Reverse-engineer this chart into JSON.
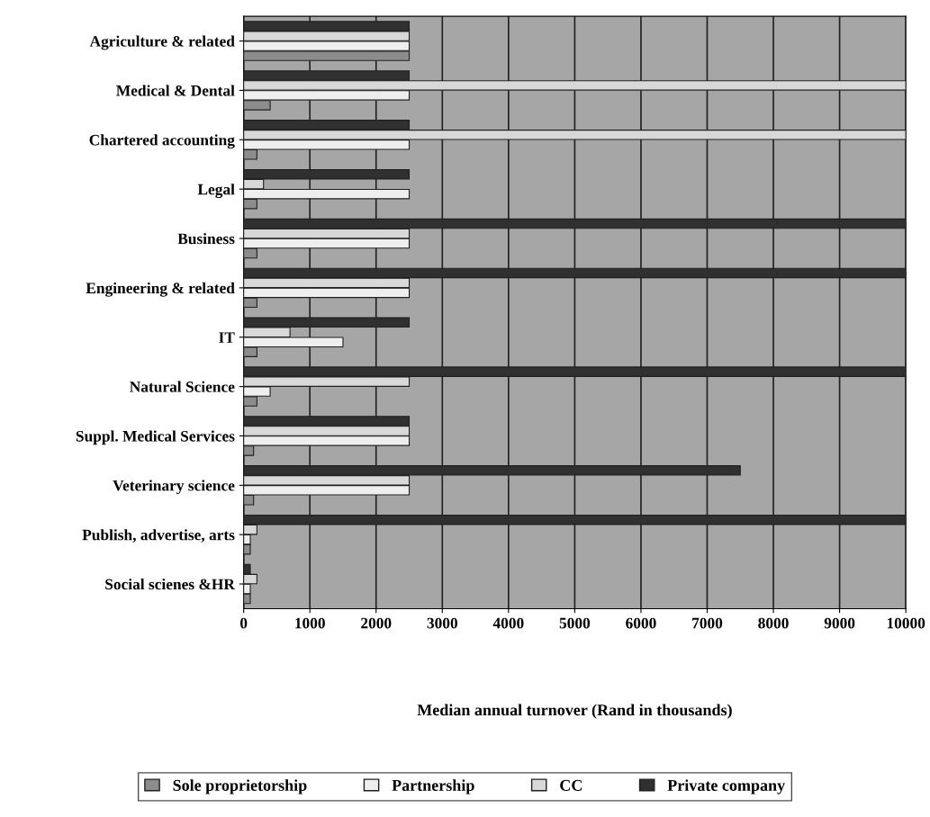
{
  "chart_data": {
    "type": "bar",
    "orientation": "horizontal",
    "xlabel": "Median annual turnover (Rand in thousands)",
    "categories": [
      "Agriculture & related",
      "Medical & Dental",
      "Chartered accounting",
      "Legal",
      "Business",
      "Engineering & related",
      "IT",
      "Natural Science",
      "Suppl. Medical Services",
      "Veterinary science",
      "Publish, advertise, arts",
      "Social scienes &HR"
    ],
    "series": [
      {
        "name": "Sole proprietorship",
        "color": "#8c8c8c",
        "values": [
          2500,
          400,
          200,
          200,
          200,
          200,
          200,
          200,
          150,
          150,
          100,
          100
        ]
      },
      {
        "name": "Partnership",
        "color": "#eeeeee",
        "values": [
          2500,
          2500,
          2500,
          2500,
          2500,
          2500,
          1500,
          400,
          2500,
          2500,
          100,
          100
        ]
      },
      {
        "name": "CC",
        "color": "#d8d8d8",
        "values": [
          2500,
          10000,
          10000,
          300,
          2500,
          2500,
          700,
          2500,
          2500,
          2500,
          200,
          200
        ]
      },
      {
        "name": "Private company",
        "color": "#303030",
        "values": [
          2500,
          2500,
          2500,
          2500,
          10000,
          10000,
          2500,
          10000,
          2500,
          7500,
          10000,
          100
        ]
      }
    ],
    "xlim": [
      0,
      10000
    ],
    "xticks": [
      0,
      1000,
      2000,
      3000,
      4000,
      5000,
      6000,
      7000,
      8000,
      9000,
      10000
    ],
    "grid": "x",
    "legend": "bottom"
  }
}
